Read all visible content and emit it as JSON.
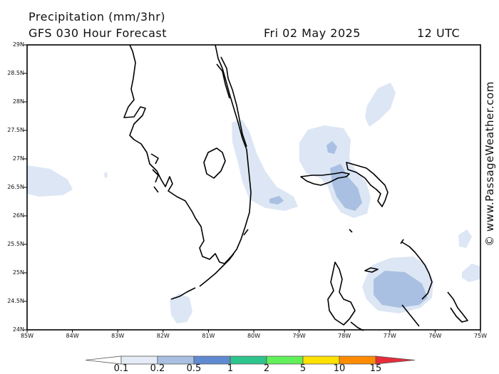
{
  "header": {
    "title": "Precipitation (mm/3hr)",
    "model": "GFS 030 Hour Forecast",
    "date": "Fri 02 May 2025",
    "time": "12 UTC"
  },
  "axes": {
    "lat_labels": [
      "29N",
      "28.5N",
      "28N",
      "27.5N",
      "27N",
      "26.5N",
      "26N",
      "25.5N",
      "25N",
      "24.5N",
      "24N"
    ],
    "lon_labels": [
      "85W",
      "84W",
      "83W",
      "82W",
      "81W",
      "80W",
      "79W",
      "78W",
      "77W",
      "76W",
      "75W"
    ],
    "lat_range": [
      24,
      29
    ],
    "lon_range": [
      -85,
      -75
    ]
  },
  "watermark": "© www.PassageWeather.com",
  "legend": {
    "ticks": [
      "0.1",
      "0.2",
      "0.5",
      "1",
      "2",
      "5",
      "10",
      "15"
    ],
    "colors": [
      "#e6ecf7",
      "#a9c0e2",
      "#5f8ad1",
      "#2ec48d",
      "#62f05a",
      "#ffe100",
      "#ff8c00",
      "#e82c3a"
    ],
    "low_color": "#ffffff"
  },
  "colors": {
    "light_precip": "#dde6f4",
    "mid_precip": "#a9c0e2",
    "coast": "#000000"
  }
}
